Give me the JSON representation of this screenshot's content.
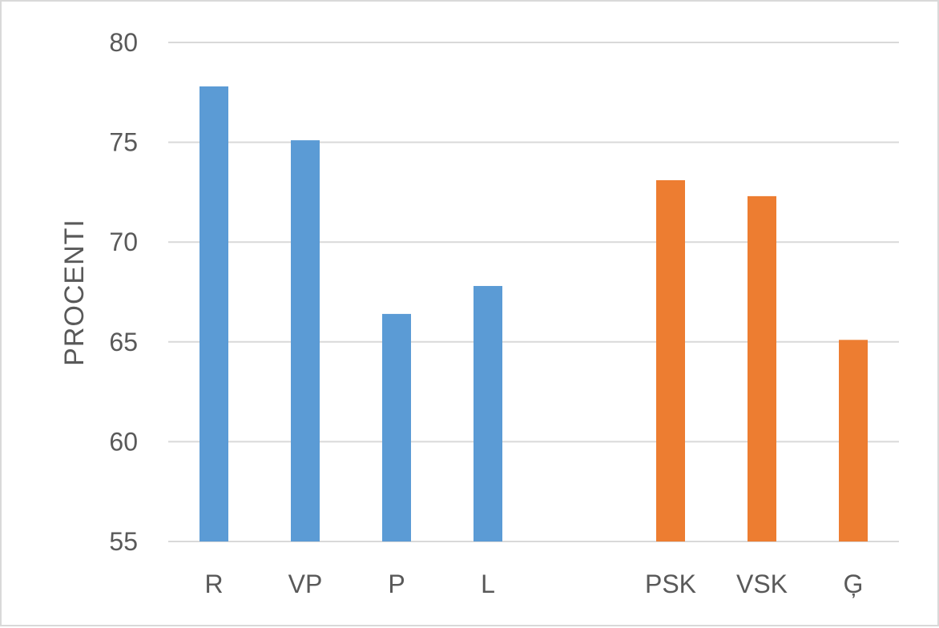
{
  "chart_data": {
    "type": "bar",
    "title": "",
    "xlabel": "",
    "ylabel": "PROCENTI",
    "ylim": [
      55,
      80
    ],
    "yticks": [
      55,
      60,
      65,
      70,
      75,
      80
    ],
    "grid": true,
    "legend": "none",
    "categories": [
      "R",
      "VP",
      "P",
      "L",
      "",
      "PSK",
      "VSK",
      "Ģ"
    ],
    "series": [
      {
        "color": "#5b9bd5",
        "values": [
          77.8,
          75.1,
          66.4,
          67.8,
          null,
          null,
          null,
          null
        ]
      },
      {
        "color": "#ed7d31",
        "values": [
          null,
          null,
          null,
          null,
          null,
          73.1,
          72.3,
          65.1
        ]
      }
    ]
  }
}
